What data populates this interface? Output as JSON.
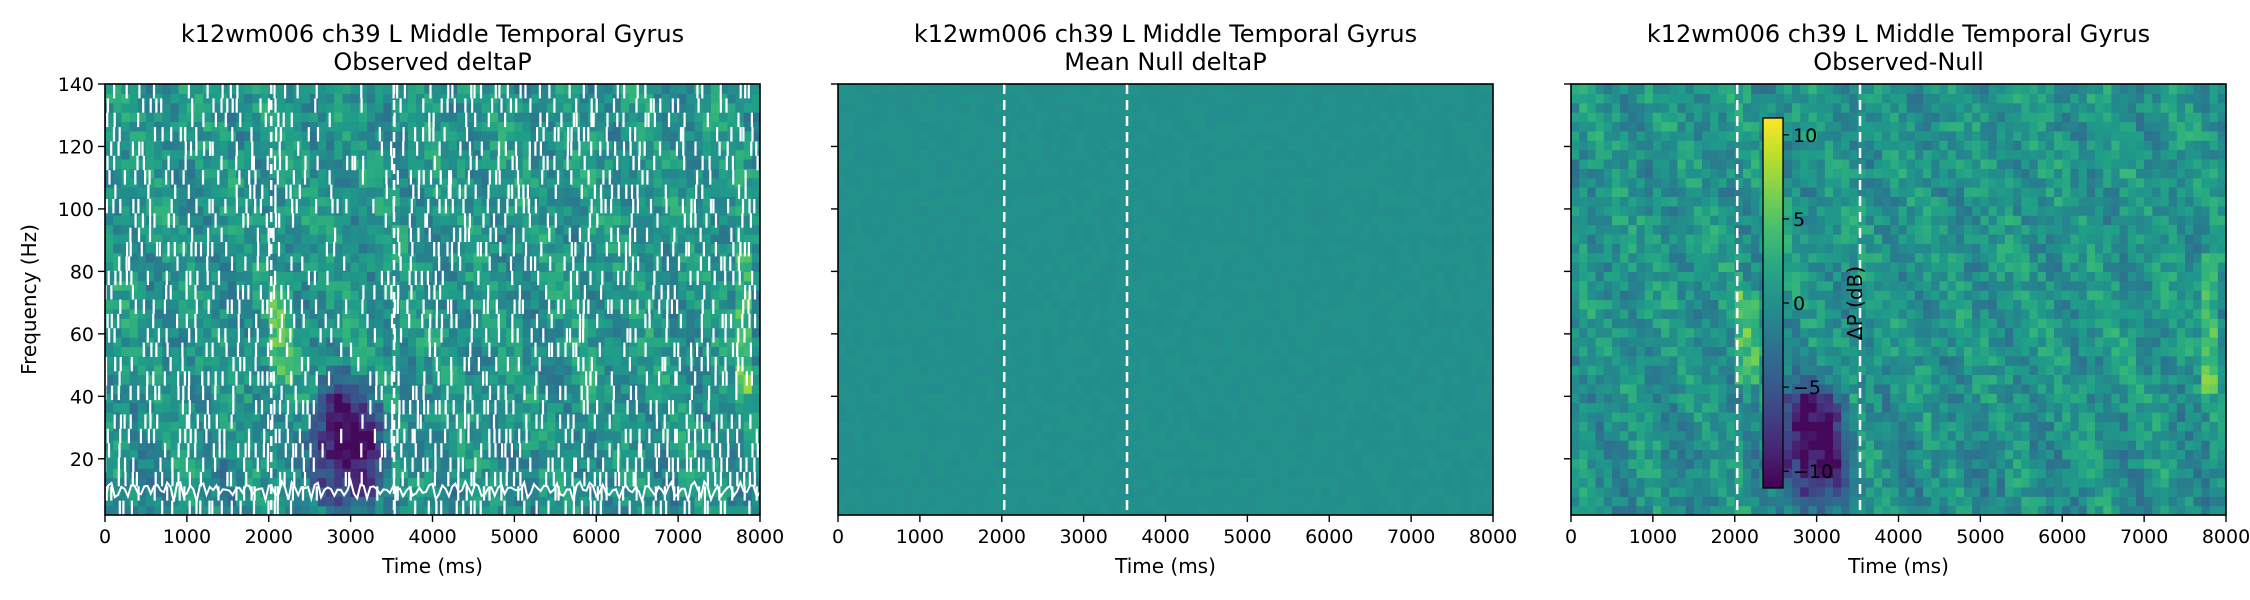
{
  "chart_data": [
    {
      "type": "heatmap",
      "title_line1": "k12wm006 ch39 L Middle Temporal Gyrus",
      "title_line2": "Observed deltaP",
      "xlabel": "Time (ms)",
      "ylabel": "Frequency (Hz)",
      "xlim": [
        0,
        8000
      ],
      "ylim": [
        2,
        140
      ],
      "xticks": [
        0,
        1000,
        2000,
        3000,
        4000,
        5000,
        6000,
        7000,
        8000
      ],
      "yticks": [
        20,
        40,
        60,
        80,
        100,
        120,
        140
      ],
      "event_lines_ms": [
        2030,
        3530
      ],
      "colormap": "viridis",
      "overlay": "white significance contour mask",
      "low_power_region": {
        "time_ms": [
          2500,
          3400
        ],
        "freq_hz": [
          5,
          45
        ]
      }
    },
    {
      "type": "heatmap",
      "title_line1": "k12wm006 ch39 L Middle Temporal Gyrus",
      "title_line2": "Mean Null deltaP",
      "xlabel": "Time (ms)",
      "ylabel": "",
      "xlim": [
        0,
        8000
      ],
      "ylim": [
        2,
        140
      ],
      "xticks": [
        0,
        1000,
        2000,
        3000,
        4000,
        5000,
        6000,
        7000,
        8000
      ],
      "yticks": [
        20,
        40,
        60,
        80,
        100,
        120,
        140
      ],
      "event_lines_ms": [
        2030,
        3530
      ],
      "colormap": "viridis",
      "value_dB": 0
    },
    {
      "type": "heatmap",
      "title_line1": "k12wm006 ch39 L Middle Temporal Gyrus",
      "title_line2": "Observed-Null",
      "xlabel": "Time (ms)",
      "ylabel": "",
      "xlim": [
        0,
        8000
      ],
      "ylim": [
        2,
        140
      ],
      "xticks": [
        0,
        1000,
        2000,
        3000,
        4000,
        5000,
        6000,
        7000,
        8000
      ],
      "yticks": [
        20,
        40,
        60,
        80,
        100,
        120,
        140
      ],
      "event_lines_ms": [
        2030,
        3530
      ],
      "colormap": "viridis",
      "colorbar": {
        "label": "ΔP (dB)",
        "range": [
          -11,
          11
        ],
        "ticks": [
          10,
          5,
          0,
          -5,
          -10
        ]
      },
      "low_power_region": {
        "time_ms": [
          2500,
          3400
        ],
        "freq_hz": [
          5,
          45
        ]
      }
    }
  ]
}
